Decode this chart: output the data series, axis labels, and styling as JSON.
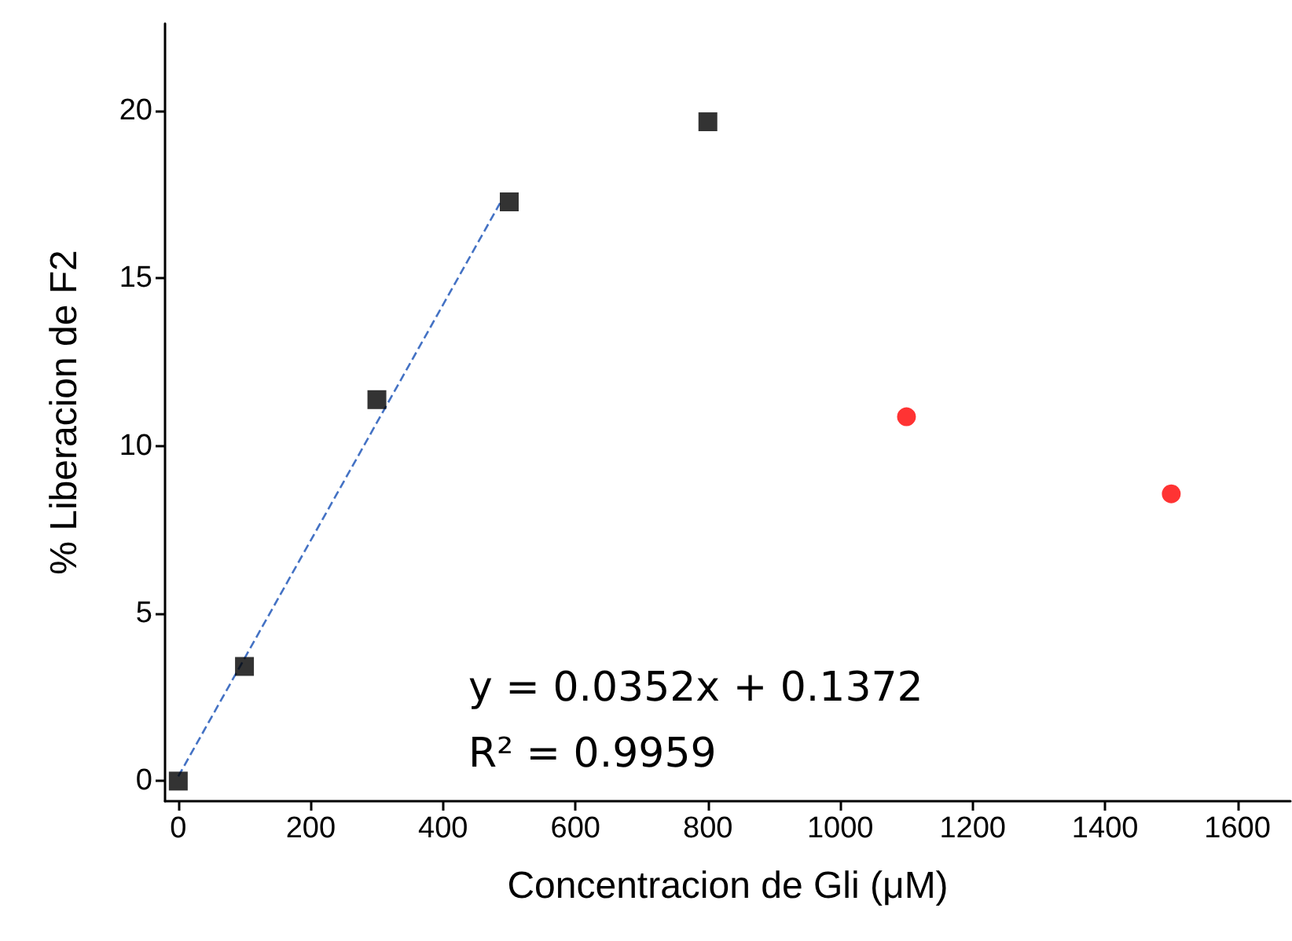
{
  "chart_data": {
    "type": "scatter",
    "xlabel": "Concentracion de Gli (μM)",
    "ylabel": "% Liberacion de F2",
    "xlim": [
      -20,
      1680
    ],
    "xticks": [
      0,
      200,
      400,
      600,
      800,
      1000,
      1200,
      1400,
      1600
    ],
    "ylim": [
      -0.6,
      22.6
    ],
    "yticks": [
      0,
      5,
      10,
      15,
      20
    ],
    "grid": false,
    "series": [
      {
        "marker": "square",
        "color": "#000000",
        "x": [
          0,
          100,
          300,
          500,
          800
        ],
        "values": [
          0,
          3.42,
          11.38,
          17.28,
          19.67
        ]
      },
      {
        "marker": "circle",
        "color": "#ff0000",
        "x": [
          1100,
          1500
        ],
        "values": [
          10.87,
          8.57
        ]
      },
      {
        "type": "line",
        "marker": "none",
        "line_style": "dashed",
        "color": "#4472c4",
        "x": [
          0,
          486
        ],
        "values": [
          0.14,
          17.24
        ]
      }
    ],
    "annotations": [
      "y = 0.0352x + 0.1372",
      "R² = 0.9959"
    ]
  }
}
